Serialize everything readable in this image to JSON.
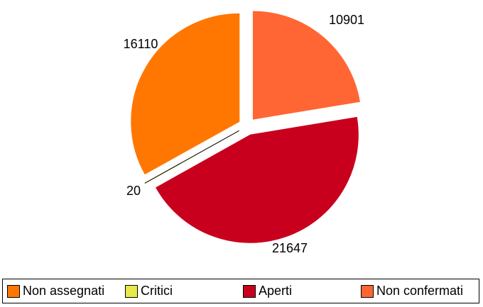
{
  "chart_data": {
    "type": "pie",
    "exploded": true,
    "slices": [
      {
        "name": "Non assegnati",
        "value": 16110,
        "color": "#FF7700"
      },
      {
        "name": "Critici",
        "value": 20,
        "color": "#E8E84A"
      },
      {
        "name": "Aperti",
        "value": 21647,
        "color": "#C8001E"
      },
      {
        "name": "Non confermati",
        "value": 10901,
        "color": "#FF6633"
      }
    ],
    "legend_position": "bottom",
    "data_labels": [
      "16110",
      "20",
      "21647",
      "10901"
    ]
  },
  "legend": {
    "items": [
      {
        "label": "Non assegnati",
        "color": "#FF7700"
      },
      {
        "label": "Critici",
        "color": "#E8E84A"
      },
      {
        "label": "Aperti",
        "color": "#C8001E"
      },
      {
        "label": "Non confermati",
        "color": "#FF6633"
      }
    ]
  }
}
